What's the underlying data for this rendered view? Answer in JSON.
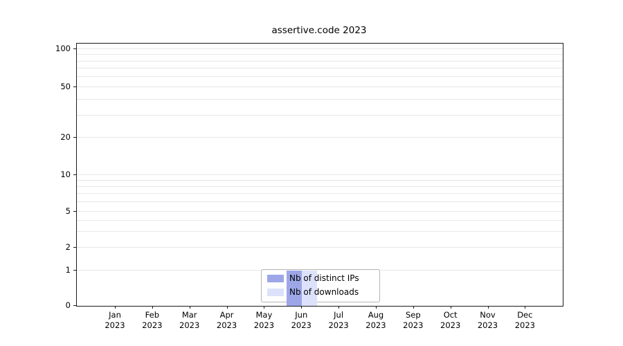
{
  "chart_data": {
    "type": "bar",
    "title": "assertive.code 2023",
    "xlabel": "",
    "ylabel": "",
    "scale": "symlog",
    "ylim": [
      0,
      100
    ],
    "yticks": [
      0,
      1,
      2,
      5,
      10,
      20,
      50,
      100
    ],
    "minor_gridlines": [
      1,
      2,
      3,
      4,
      5,
      6,
      7,
      8,
      9,
      10,
      20,
      30,
      40,
      50,
      60,
      70,
      80,
      90,
      100
    ],
    "grid": "horizontal",
    "categories": [
      "Jan",
      "Feb",
      "Mar",
      "Apr",
      "May",
      "Jun",
      "Jul",
      "Aug",
      "Sep",
      "Oct",
      "Nov",
      "Dec"
    ],
    "x_year_line": "2023",
    "series": [
      {
        "name": "Nb of distinct IPs",
        "color": "#9da7e8",
        "values": [
          0,
          0,
          0,
          0,
          0,
          1,
          0,
          0,
          0,
          0,
          0,
          0
        ]
      },
      {
        "name": "Nb of downloads",
        "color": "#dde2fb",
        "values": [
          0,
          0,
          0,
          0,
          0,
          1,
          0,
          0,
          0,
          0,
          0,
          0
        ]
      }
    ],
    "legend_position": "bottom-center"
  }
}
